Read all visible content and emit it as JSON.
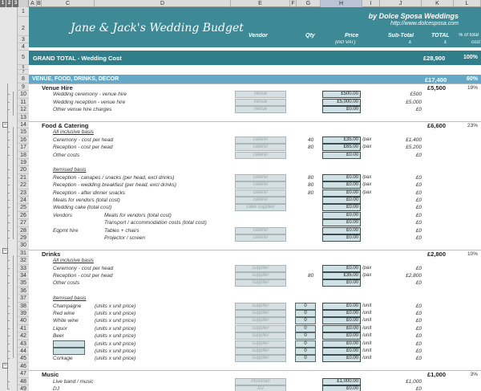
{
  "columns": [
    "A",
    "B",
    "C",
    "D",
    "E",
    "F",
    "G",
    "H",
    "I",
    "J",
    "K",
    "L"
  ],
  "outline_levels": [
    "1",
    "2",
    "3"
  ],
  "header": {
    "title": "Jane & Jack's Wedding Budget",
    "brand": "by Dolce Sposa Weddings",
    "brand_url": "http://www.dolcesposa.com",
    "col_vendor": "Vendor",
    "col_qty": "Qty",
    "col_price": "Price",
    "col_price_note": "(incl VAT)",
    "col_subtotal": "Sub-Total",
    "col_subtotal_unit": "£",
    "col_total": "TOTAL",
    "col_total_unit": "£",
    "col_pct": "% of total",
    "col_pct_note": "cost"
  },
  "grand_total": {
    "label": "GRAND TOTAL - Wedding Cost",
    "value": "£28,900",
    "pct": "100%"
  },
  "section": {
    "label": "VENUE, FOOD, DRINKS, DÉCOR",
    "value": "£17,400",
    "pct": "60%"
  },
  "venue": {
    "name": "Venue Hire",
    "total": "£5,500",
    "pct": "19%",
    "items": [
      {
        "label": "Wedding ceremony - venue hire",
        "vendor": "venue",
        "price": "£500.00",
        "sub": "£500"
      },
      {
        "label": "Wedding reception - venue hire",
        "vendor": "venue",
        "price": "£5,000.00",
        "sub": "£5,000"
      },
      {
        "label": "Other venue hire charges",
        "vendor": "venue",
        "price": "£0.00",
        "sub": "£0"
      }
    ]
  },
  "food": {
    "name": "Food & Catering",
    "total": "£6,600",
    "pct": "23%",
    "all_inclusive": "All inclusive basis",
    "itemised": "Itemised basis",
    "vendors_label": "Vendors",
    "eqpt_label": "Eqpmt hire",
    "items": [
      {
        "label": "Ceremony - cost per head",
        "vendor": "caterer",
        "qty": "40",
        "price": "£35.00",
        "unit": "/pax",
        "sub": "£1,400"
      },
      {
        "label": "Reception - cost per head",
        "vendor": "caterer",
        "qty": "80",
        "price": "£65.00",
        "unit": "/pax",
        "sub": "£5,200"
      },
      {
        "label": "Other costs",
        "vendor": "caterer",
        "qty": "",
        "price": "£0.00",
        "unit": "",
        "sub": "£0"
      },
      {
        "label": "Reception - canapes / snacks (per head, excl drinks)",
        "vendor": "caterer",
        "qty": "80",
        "price": "£0.00",
        "unit": "/pax",
        "sub": "£0"
      },
      {
        "label": "Reception - wedding breakfast (per head, excl drinks)",
        "vendor": "caterer",
        "qty": "80",
        "price": "£0.00",
        "unit": "/pax",
        "sub": "£0"
      },
      {
        "label": "Reception - after dinner snacks",
        "vendor": "caterer",
        "qty": "80",
        "price": "£0.00",
        "unit": "/pax",
        "sub": "£0"
      },
      {
        "label": "Meals for vendors (total cost)",
        "vendor": "caterer",
        "qty": "",
        "price": "£0.00",
        "unit": "",
        "sub": "£0"
      },
      {
        "label": "Wedding cake (total cost)",
        "vendor": "cake supplier",
        "qty": "",
        "price": "£0.00",
        "unit": "",
        "sub": "£0"
      },
      {
        "label": "Meals for vendors (total cost)",
        "vendor": "",
        "qty": "",
        "price": "£0.00",
        "unit": "",
        "sub": "£0"
      },
      {
        "label": "Transport / accommodation costs (total cost)",
        "vendor": "",
        "qty": "",
        "price": "£0.00",
        "unit": "",
        "sub": "£0"
      },
      {
        "label": "Tables + chairs",
        "vendor": "caterer",
        "qty": "",
        "price": "£0.00",
        "unit": "",
        "sub": "£0"
      },
      {
        "label": "Projector / screen",
        "vendor": "caterer",
        "qty": "",
        "price": "£0.00",
        "unit": "",
        "sub": "£0"
      }
    ]
  },
  "drinks": {
    "name": "Drinks",
    "total": "£2,800",
    "pct": "10%",
    "all_inclusive": "All inclusive basis",
    "itemised": "Itemised basis",
    "items": [
      {
        "label": "Ceremony - cost per head",
        "vendor": "supplier",
        "qty": "",
        "price": "£0.00",
        "unit": "/pax",
        "sub": "£0"
      },
      {
        "label": "Reception - cost per head",
        "vendor": "supplier",
        "qty": "80",
        "price": "£35.00",
        "unit": "/pax",
        "sub": "£2,800"
      },
      {
        "label": "Other costs",
        "vendor": "supplier",
        "qty": "",
        "price": "£0.00",
        "unit": "",
        "sub": "£0"
      }
    ],
    "unit_items": [
      {
        "label": "Champagne",
        "calc": "(units  x  unit price)",
        "vendor": "supplier",
        "qty": "0",
        "price": "£0.00",
        "unit": "/unit",
        "sub": "£0"
      },
      {
        "label": "Red wine",
        "calc": "(units  x  unit price)",
        "vendor": "supplier",
        "qty": "0",
        "price": "£0.00",
        "unit": "/unit",
        "sub": "£0"
      },
      {
        "label": "White wine",
        "calc": "(units  x  unit price)",
        "vendor": "supplier",
        "qty": "0",
        "price": "£0.00",
        "unit": "/unit",
        "sub": "£0"
      },
      {
        "label": "Liquor",
        "calc": "(units  x  unit price)",
        "vendor": "supplier",
        "qty": "0",
        "price": "£0.00",
        "unit": "/unit",
        "sub": "£0"
      },
      {
        "label": "Beer",
        "calc": "(units  x  unit price)",
        "vendor": "supplier",
        "qty": "0",
        "price": "£0.00",
        "unit": "/unit",
        "sub": "£0"
      },
      {
        "label": "",
        "calc": "(units  x  unit price)",
        "vendor": "supplier",
        "qty": "0",
        "price": "£0.00",
        "unit": "/unit",
        "sub": "£0"
      },
      {
        "label": "",
        "calc": "(units  x  unit price)",
        "vendor": "supplier",
        "qty": "0",
        "price": "£0.00",
        "unit": "/unit",
        "sub": "£0"
      },
      {
        "label": "Corkage",
        "calc": "(units  x  unit price)",
        "vendor": "supplier",
        "qty": "0",
        "price": "£0.00",
        "unit": "/unit",
        "sub": "£0"
      }
    ]
  },
  "music": {
    "name": "Music",
    "total": "£1,000",
    "pct": "3%",
    "items": [
      {
        "label": "Live band / music",
        "vendor": "musician",
        "price": "£1,000.00",
        "sub": "£1,000"
      },
      {
        "label": "DJ",
        "vendor": "DJ",
        "price": "£0.00",
        "sub": "£0"
      }
    ]
  }
}
